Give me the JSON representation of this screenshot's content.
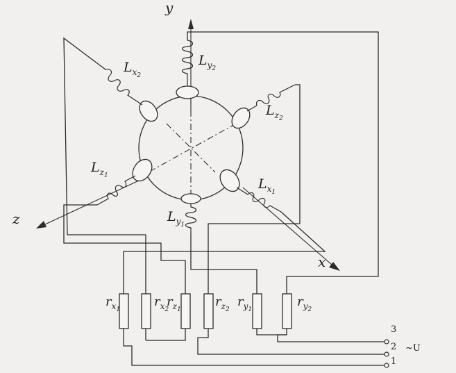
{
  "axes": {
    "x": "x",
    "y": "y",
    "z": "z"
  },
  "inductors": [
    {
      "id": "Lx2",
      "base": "L",
      "sub": "x",
      "subsub": "2"
    },
    {
      "id": "Ly2",
      "base": "L",
      "sub": "y",
      "subsub": "2"
    },
    {
      "id": "Lz2",
      "base": "L",
      "sub": "z",
      "subsub": "2"
    },
    {
      "id": "Lz1",
      "base": "L",
      "sub": "z",
      "subsub": "1"
    },
    {
      "id": "Lx1",
      "base": "L",
      "sub": "x",
      "subsub": "1"
    },
    {
      "id": "Ly1",
      "base": "L",
      "sub": "y",
      "subsub": "1"
    }
  ],
  "resistors": [
    {
      "id": "rx1",
      "base": "r",
      "sub": "x",
      "subsub": "1"
    },
    {
      "id": "rx2",
      "base": "r",
      "sub": "x",
      "subsub": "2"
    },
    {
      "id": "rz1",
      "base": "r",
      "sub": "z",
      "subsub": "1"
    },
    {
      "id": "rz2",
      "base": "r",
      "sub": "z",
      "subsub": "2"
    },
    {
      "id": "ry1",
      "base": "r",
      "sub": "y",
      "subsub": "1"
    },
    {
      "id": "ry2",
      "base": "r",
      "sub": "y",
      "subsub": "2"
    }
  ],
  "terminals": [
    "3",
    "2",
    "1"
  ],
  "supply": "~U"
}
